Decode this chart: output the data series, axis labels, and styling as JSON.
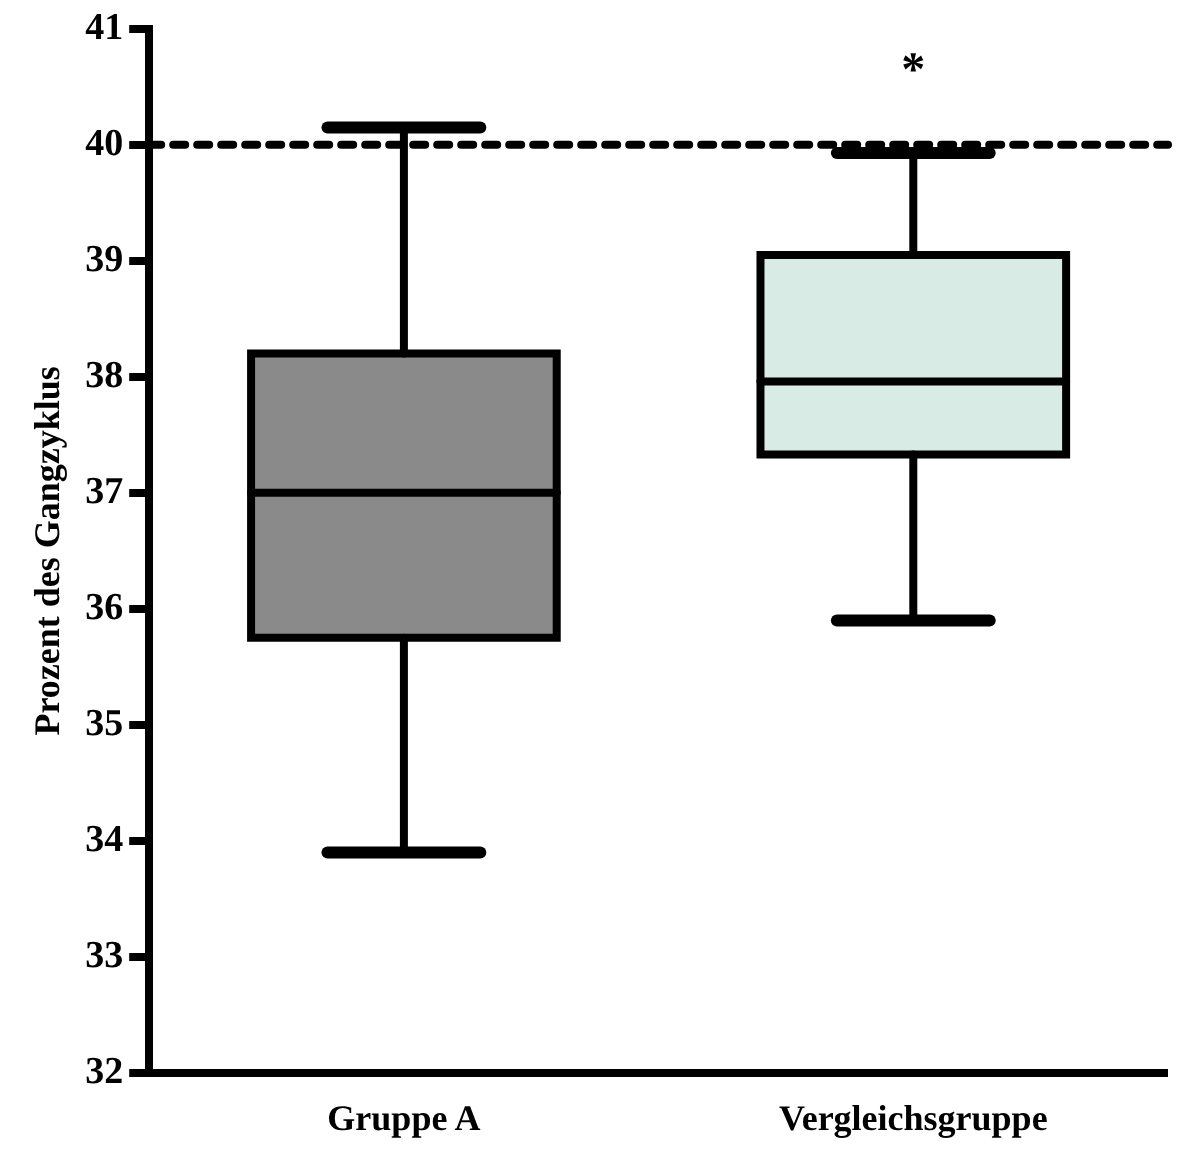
{
  "chart_data": {
    "type": "box",
    "ylabel": "Prozent des Gangzyklus",
    "categories": [
      "Gruppe A",
      "Vergleichsgruppe"
    ],
    "boxes": [
      {
        "low": 33.9,
        "q1": 35.75,
        "median": 37.0,
        "q3": 38.2,
        "high": 40.15
      },
      {
        "low": 35.9,
        "q1": 37.33,
        "median": 37.96,
        "q3": 39.05,
        "high": 39.93
      }
    ],
    "colors": [
      "#8a8a8a",
      "#d8ebe4"
    ],
    "ylim": [
      32,
      41
    ],
    "yticks": [
      32,
      33,
      34,
      35,
      36,
      37,
      38,
      39,
      40,
      41
    ],
    "grid": false,
    "legend": false,
    "ref_lines": [
      {
        "axis": "y",
        "value": 40,
        "line_style": "dashed",
        "color": "#000000"
      }
    ],
    "annotations": [
      "*"
    ]
  }
}
